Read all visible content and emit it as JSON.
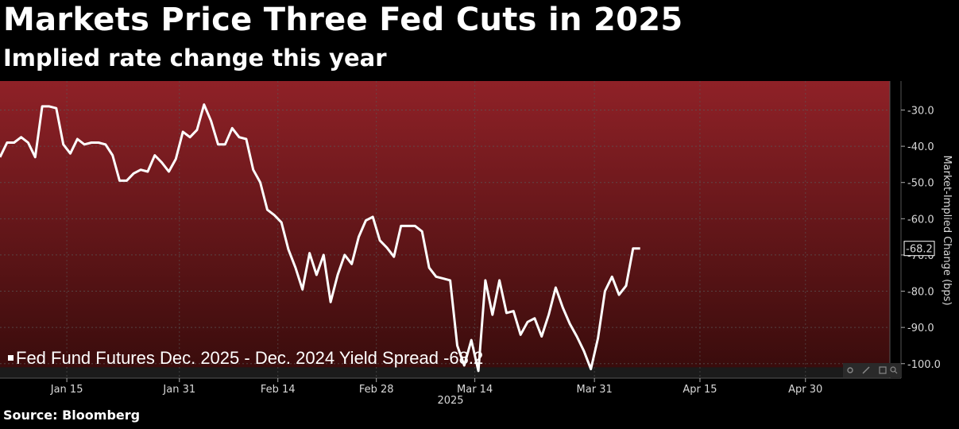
{
  "header": {
    "title": "Markets Price Three Fed Cuts in 2025",
    "subtitle": "Implied rate change this year"
  },
  "footer": {
    "source": "Source: Bloomberg"
  },
  "colors": {
    "background": "#000000",
    "plot_bg": "#1b1b1b",
    "band_top": "#8f2127",
    "band_bottom": "#3a0c0c",
    "line": "#ffffff",
    "axis_text": "#d8d8d8"
  },
  "chart_data": {
    "type": "line",
    "title": "Markets Price Three Fed Cuts in 2025",
    "subtitle": "Implied rate change this year",
    "ylabel": "Market-Implied Change (bps)",
    "xlabel": "2025",
    "ylim": [
      -104,
      -22
    ],
    "yticks": [
      -30,
      -40,
      -50,
      -60,
      -70,
      -80,
      -90,
      -100
    ],
    "ytick_labels": [
      "-30.0",
      "-40.0",
      "-50.0",
      "-60.0",
      "-70.0",
      "-80.0",
      "-90.0",
      "-100.0"
    ],
    "xticks": [
      {
        "label": "Jan 15",
        "day": 15
      },
      {
        "label": "Jan 31",
        "day": 31
      },
      {
        "label": "Feb 14",
        "day": 45
      },
      {
        "label": "Feb 28",
        "day": 59
      },
      {
        "label": "Mar 14",
        "day": 73
      },
      {
        "label": "Mar 31",
        "day": 90
      },
      {
        "label": "Apr 15",
        "day": 105
      },
      {
        "label": "Apr 30",
        "day": 120
      }
    ],
    "xlim": [
      5.5,
      132
    ],
    "year_label": "2025",
    "shaded_band_ylim": [
      -22,
      -101
    ],
    "series": [
      {
        "name": "Fed Fund Futures Dec. 2025 - Dec. 2024 Yield Spread",
        "legend_label": "Fed Fund Futures Dec. 2025 - Dec. 2024 Yield Spread -68.2",
        "last_value_label": "-68.2",
        "points": [
          [
            5.5,
            -43
          ],
          [
            6.5,
            -39
          ],
          [
            7.5,
            -39
          ],
          [
            8.5,
            -37.5
          ],
          [
            9.5,
            -39
          ],
          [
            10.5,
            -43
          ],
          [
            11.5,
            -29
          ],
          [
            12.5,
            -29
          ],
          [
            13.5,
            -29.5
          ],
          [
            14.5,
            -39.5
          ],
          [
            15.5,
            -42
          ],
          [
            16.5,
            -38
          ],
          [
            17.5,
            -39.5
          ],
          [
            18.5,
            -39
          ],
          [
            19.5,
            -39
          ],
          [
            20.5,
            -39.5
          ],
          [
            21.5,
            -42.5
          ],
          [
            22.5,
            -49.5
          ],
          [
            23.5,
            -49.5
          ],
          [
            24.5,
            -47.5
          ],
          [
            25.5,
            -46.5
          ],
          [
            26.5,
            -47
          ],
          [
            27.5,
            -42.5
          ],
          [
            28.5,
            -44.5
          ],
          [
            29.5,
            -47
          ],
          [
            30.5,
            -43.5
          ],
          [
            31.5,
            -36
          ],
          [
            32.5,
            -37.5
          ],
          [
            33.5,
            -35.5
          ],
          [
            34.5,
            -28.5
          ],
          [
            35.5,
            -33
          ],
          [
            36.5,
            -39.5
          ],
          [
            37.5,
            -39.5
          ],
          [
            38.5,
            -35
          ],
          [
            39.5,
            -37.5
          ],
          [
            40.5,
            -38
          ],
          [
            41.5,
            -46.5
          ],
          [
            42.5,
            -50
          ],
          [
            43.5,
            -57.5
          ],
          [
            44.5,
            -59
          ],
          [
            45.5,
            -61
          ],
          [
            46.5,
            -68.5
          ],
          [
            47.5,
            -73.5
          ],
          [
            48.5,
            -79.5
          ],
          [
            49.5,
            -69.5
          ],
          [
            50.5,
            -75.5
          ],
          [
            51.5,
            -70
          ],
          [
            52.5,
            -83
          ],
          [
            53.5,
            -75.5
          ],
          [
            54.5,
            -70
          ],
          [
            55.5,
            -72.5
          ],
          [
            56.5,
            -65
          ],
          [
            57.5,
            -60.5
          ],
          [
            58.5,
            -59.5
          ],
          [
            59.5,
            -66
          ],
          [
            60.5,
            -68
          ],
          [
            61.5,
            -70.5
          ],
          [
            62.5,
            -62
          ],
          [
            63.5,
            -62
          ],
          [
            64.5,
            -62
          ],
          [
            65.5,
            -63.5
          ],
          [
            66.5,
            -73.5
          ],
          [
            67.5,
            -76
          ],
          [
            68.5,
            -76.5
          ],
          [
            69.5,
            -77
          ],
          [
            70.5,
            -95
          ],
          [
            71.5,
            -100.5
          ],
          [
            72.5,
            -93.5
          ],
          [
            73.5,
            -102
          ],
          [
            74.5,
            -77
          ],
          [
            75.5,
            -86.5
          ],
          [
            76.5,
            -77
          ],
          [
            77.5,
            -86
          ],
          [
            78.5,
            -85.5
          ],
          [
            79.5,
            -92
          ],
          [
            80.5,
            -88.5
          ],
          [
            81.5,
            -87.5
          ],
          [
            82.5,
            -92.5
          ],
          [
            83.5,
            -86.5
          ],
          [
            84.5,
            -79
          ],
          [
            85.5,
            -84.5
          ],
          [
            86.5,
            -89
          ],
          [
            87.5,
            -92.5
          ],
          [
            88.5,
            -96.5
          ],
          [
            89.5,
            -101.5
          ],
          [
            90.5,
            -93
          ],
          [
            91.5,
            -80
          ],
          [
            92.5,
            -76
          ],
          [
            93.5,
            -81
          ],
          [
            94.5,
            -78.5
          ],
          [
            95.5,
            -68.2
          ],
          [
            96.5,
            -68.2
          ]
        ]
      }
    ]
  }
}
